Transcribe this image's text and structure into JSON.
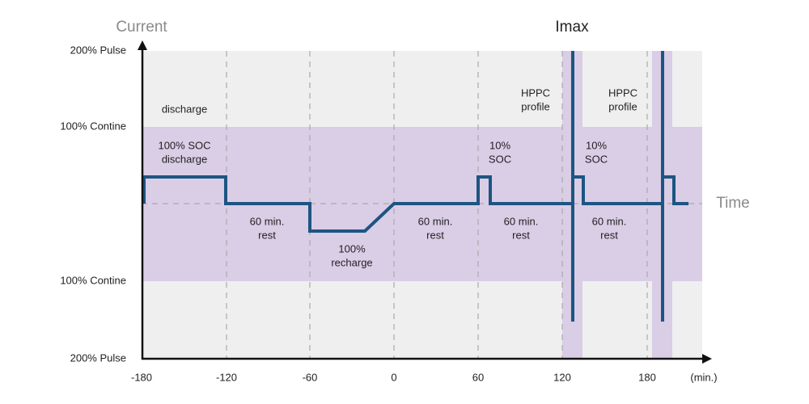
{
  "axes": {
    "y_title": "Current",
    "x_title": "Time",
    "x_unit": "(min.)",
    "y_labels": [
      "200% Pulse",
      "100% Contine",
      "100% Contine",
      "200% Pulse"
    ],
    "x_labels": [
      "-180",
      "-120",
      "-60",
      "0",
      "60",
      "120",
      "180"
    ]
  },
  "marker": "Imax",
  "annotations": [
    {
      "lines": [
        "discharge"
      ]
    },
    {
      "lines": [
        "100% SOC",
        "discharge"
      ]
    },
    {
      "lines": [
        "60 min.",
        "rest"
      ]
    },
    {
      "lines": [
        "100%",
        "recharge"
      ]
    },
    {
      "lines": [
        "60 min.",
        "rest"
      ]
    },
    {
      "lines": [
        "10%",
        "SOC"
      ]
    },
    {
      "lines": [
        "60 min.",
        "rest"
      ]
    },
    {
      "lines": [
        "HPPC",
        "profile"
      ]
    },
    {
      "lines": [
        "HPPC",
        "profile"
      ]
    },
    {
      "lines": [
        "10%",
        "SOC"
      ]
    },
    {
      "lines": [
        "60 min.",
        "rest"
      ]
    }
  ]
}
